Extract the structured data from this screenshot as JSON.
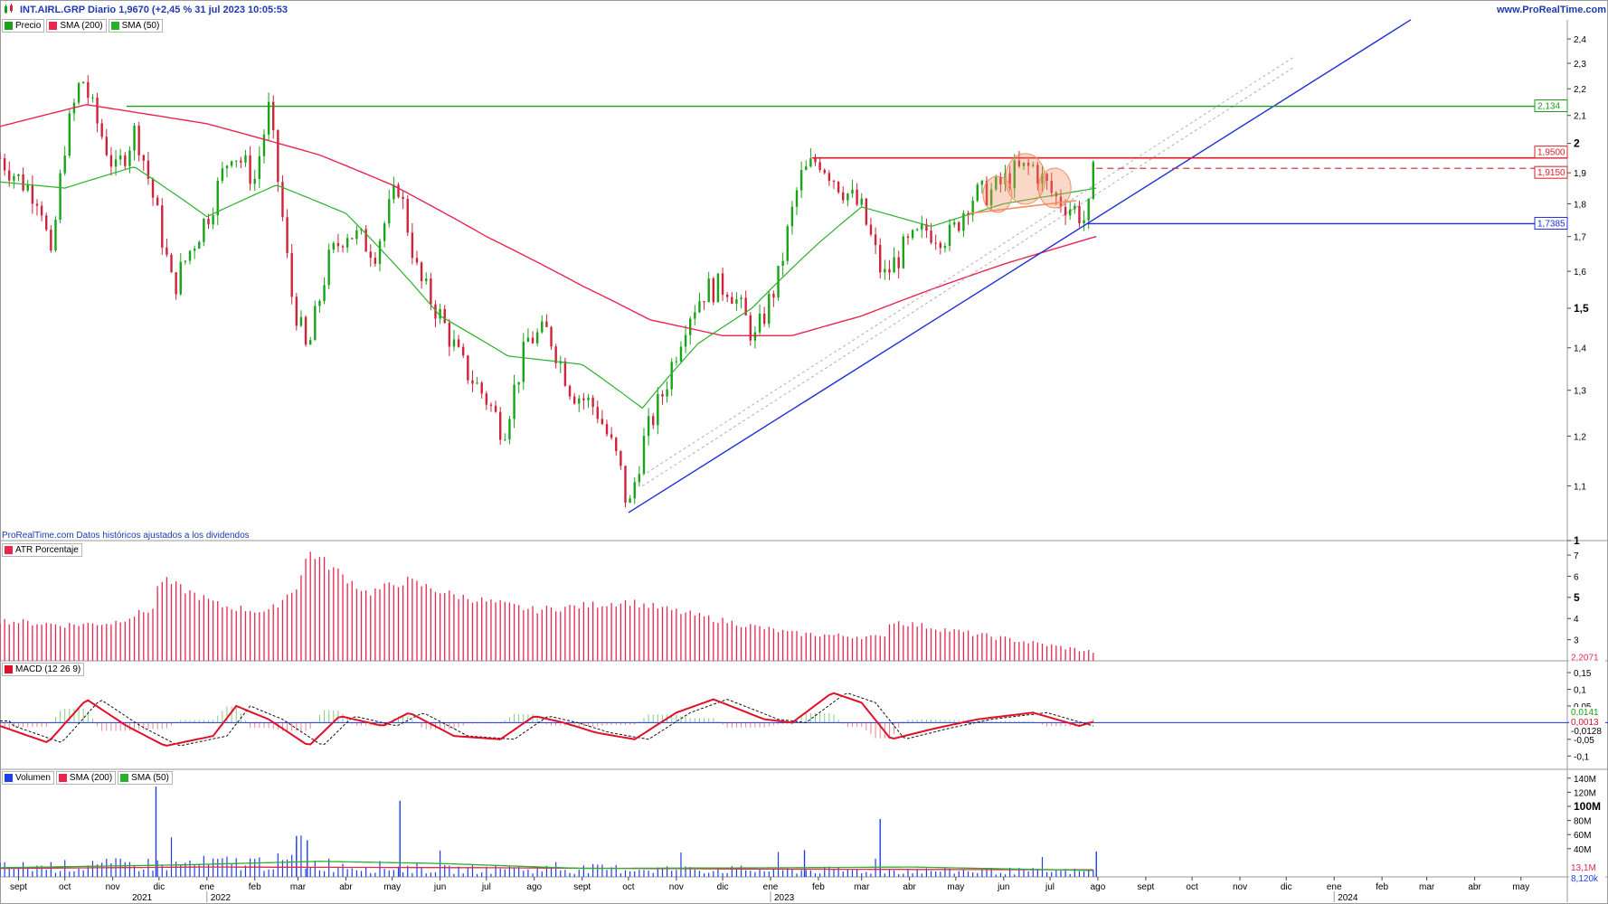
{
  "header": {
    "title": "INT.AIRL.GRP Diario 1,9670 (+2,45 % 31 jul 2023 10:05:53",
    "site": "www.ProRealTime.com"
  },
  "disclaimer": "ProRealTime.com Datos históricos ajustados a los dividendos",
  "colors": {
    "price_up": "#19a319",
    "price_down": "#d0223a",
    "sma200": "#e8264f",
    "sma50": "#29b229",
    "trendline": "#1f2fd6",
    "resistance": "#1e9a1e",
    "level_red": "#d81e2a",
    "pattern": "#f09060",
    "atr": "#e8264f",
    "macd": "#e0102a",
    "volume": "#1f3ee8"
  },
  "price_panel": {
    "legend": [
      {
        "label": "Precio",
        "color": "#19a319"
      },
      {
        "label": "SMA (200)",
        "color": "#e8264f"
      },
      {
        "label": "SMA (50)",
        "color": "#29b229"
      }
    ],
    "y_ticks": [
      "2,4",
      "2,3",
      "2,2",
      "2,1",
      "2",
      "1,9",
      "1,8",
      "1,7",
      "1,6",
      "1,5",
      "1,4",
      "1,3",
      "1,2",
      "1,1",
      "1"
    ],
    "bold_ticks": [
      "2",
      "1,5",
      "1"
    ],
    "levels": [
      {
        "label": "2,134",
        "value": 2.134,
        "color": "#1e9a1e"
      },
      {
        "label": "1,9500",
        "value": 1.95,
        "color": "#d81e2a"
      },
      {
        "label": "1,9150",
        "value": 1.915,
        "color": "#d81e2a"
      },
      {
        "label": "1,7385",
        "value": 1.7385,
        "color": "#1f2fd6"
      }
    ],
    "last_price": 1.967
  },
  "atr_panel": {
    "legend": [
      {
        "label": "ATR Porcentaje",
        "color": "#e8264f"
      }
    ],
    "y_ticks": [
      "7",
      "6",
      "5",
      "4",
      "3"
    ],
    "bold_ticks": [
      "5"
    ],
    "last_label": "2,2071"
  },
  "macd_panel": {
    "legend": [
      {
        "label": "MACD (12 26 9)",
        "color": "#e0102a"
      }
    ],
    "y_ticks": [
      "0,15",
      "0,1",
      "0,05",
      "-0,05",
      "-0,1"
    ],
    "value_labels": [
      "0,0141",
      "0,0013",
      "-0,0128"
    ]
  },
  "volume_panel": {
    "legend": [
      {
        "label": "Volumen",
        "color": "#1f3ee8"
      },
      {
        "label": "SMA (200)",
        "color": "#e8264f"
      },
      {
        "label": "SMA (50)",
        "color": "#29b229"
      }
    ],
    "y_ticks": [
      "140M",
      "120M",
      "100M",
      "80M",
      "60M",
      "40M"
    ],
    "bold_ticks": [
      "100M"
    ],
    "value_labels": [
      "13,1M",
      "8,120k"
    ]
  },
  "x_axis": {
    "months": [
      "sept",
      "oct",
      "nov",
      "dic",
      "ene",
      "feb",
      "mar",
      "abr",
      "may",
      "jun",
      "jul",
      "ago",
      "sept",
      "oct",
      "nov",
      "dic",
      "ene",
      "feb",
      "mar",
      "abr",
      "may",
      "jun",
      "jul",
      "ago",
      "sept",
      "oct",
      "nov",
      "dic",
      "ene",
      "feb",
      "mar",
      "abr",
      "may"
    ],
    "years": [
      "2021",
      "2022",
      "2023",
      "2024"
    ]
  },
  "chart_data": {
    "type": "candlestick",
    "title": "INT.AIRL.GRP Diario",
    "x_range": [
      "2021-08-20",
      "2024-05-31"
    ],
    "ylim": [
      1.0,
      2.45
    ],
    "y_scale": "log",
    "series": [
      {
        "name": "Precio",
        "points": [
          [
            "2021-08-20",
            1.95
          ],
          [
            "2021-09-01",
            1.88
          ],
          [
            "2021-09-15",
            1.82
          ],
          [
            "2021-09-22",
            1.62
          ],
          [
            "2021-10-01",
            2.0
          ],
          [
            "2021-10-12",
            2.25
          ],
          [
            "2021-10-20",
            2.1
          ],
          [
            "2021-11-03",
            1.9
          ],
          [
            "2021-11-16",
            2.05
          ],
          [
            "2021-11-30",
            1.76
          ],
          [
            "2021-12-10",
            1.55
          ],
          [
            "2021-12-20",
            1.65
          ],
          [
            "2022-01-03",
            1.78
          ],
          [
            "2022-01-17",
            1.98
          ],
          [
            "2022-02-01",
            1.88
          ],
          [
            "2022-02-10",
            2.12
          ],
          [
            "2022-02-24",
            1.55
          ],
          [
            "2022-03-07",
            1.38
          ],
          [
            "2022-03-20",
            1.62
          ],
          [
            "2022-04-01",
            1.72
          ],
          [
            "2022-04-20",
            1.66
          ],
          [
            "2022-05-05",
            1.86
          ],
          [
            "2022-05-18",
            1.58
          ],
          [
            "2022-06-01",
            1.48
          ],
          [
            "2022-06-15",
            1.36
          ],
          [
            "2022-07-01",
            1.28
          ],
          [
            "2022-07-12",
            1.21
          ],
          [
            "2022-07-28",
            1.42
          ],
          [
            "2022-08-10",
            1.44
          ],
          [
            "2022-08-25",
            1.3
          ],
          [
            "2022-09-10",
            1.26
          ],
          [
            "2022-09-25",
            1.14
          ],
          [
            "2022-10-01",
            1.05
          ],
          [
            "2022-10-10",
            1.18
          ],
          [
            "2022-10-24",
            1.3
          ],
          [
            "2022-11-08",
            1.48
          ],
          [
            "2022-11-20",
            1.55
          ],
          [
            "2022-12-05",
            1.56
          ],
          [
            "2022-12-22",
            1.42
          ],
          [
            "2023-01-06",
            1.58
          ],
          [
            "2023-01-20",
            1.88
          ],
          [
            "2023-02-01",
            1.95
          ],
          [
            "2023-02-15",
            1.86
          ],
          [
            "2023-03-01",
            1.78
          ],
          [
            "2023-03-15",
            1.58
          ],
          [
            "2023-03-28",
            1.66
          ],
          [
            "2023-04-12",
            1.72
          ],
          [
            "2023-04-28",
            1.7
          ],
          [
            "2023-05-10",
            1.82
          ],
          [
            "2023-05-25",
            1.84
          ],
          [
            "2023-06-08",
            1.9
          ],
          [
            "2023-06-20",
            1.92
          ],
          [
            "2023-07-04",
            1.82
          ],
          [
            "2023-07-18",
            1.78
          ],
          [
            "2023-07-25",
            1.74
          ],
          [
            "2023-07-31",
            1.967
          ]
        ]
      },
      {
        "name": "SMA (200)",
        "points": [
          [
            "2021-08-20",
            2.06
          ],
          [
            "2021-10-15",
            2.14
          ],
          [
            "2022-01-01",
            2.07
          ],
          [
            "2022-03-15",
            1.96
          ],
          [
            "2022-05-01",
            1.86
          ],
          [
            "2022-07-01",
            1.7
          ],
          [
            "2022-09-01",
            1.56
          ],
          [
            "2022-10-15",
            1.47
          ],
          [
            "2022-12-01",
            1.43
          ],
          [
            "2023-01-15",
            1.43
          ],
          [
            "2023-03-01",
            1.48
          ],
          [
            "2023-04-15",
            1.55
          ],
          [
            "2023-06-01",
            1.62
          ],
          [
            "2023-07-31",
            1.7
          ]
        ]
      },
      {
        "name": "SMA (50)",
        "points": [
          [
            "2021-08-20",
            1.87
          ],
          [
            "2021-10-01",
            1.85
          ],
          [
            "2021-11-15",
            1.92
          ],
          [
            "2022-01-01",
            1.76
          ],
          [
            "2022-02-15",
            1.86
          ],
          [
            "2022-04-01",
            1.77
          ],
          [
            "2022-06-01",
            1.48
          ],
          [
            "2022-07-15",
            1.38
          ],
          [
            "2022-09-01",
            1.36
          ],
          [
            "2022-10-10",
            1.26
          ],
          [
            "2022-11-15",
            1.41
          ],
          [
            "2022-12-20",
            1.5
          ],
          [
            "2023-02-01",
            1.68
          ],
          [
            "2023-03-01",
            1.79
          ],
          [
            "2023-04-15",
            1.73
          ],
          [
            "2023-06-01",
            1.8
          ],
          [
            "2023-07-31",
            1.85
          ]
        ]
      }
    ]
  }
}
